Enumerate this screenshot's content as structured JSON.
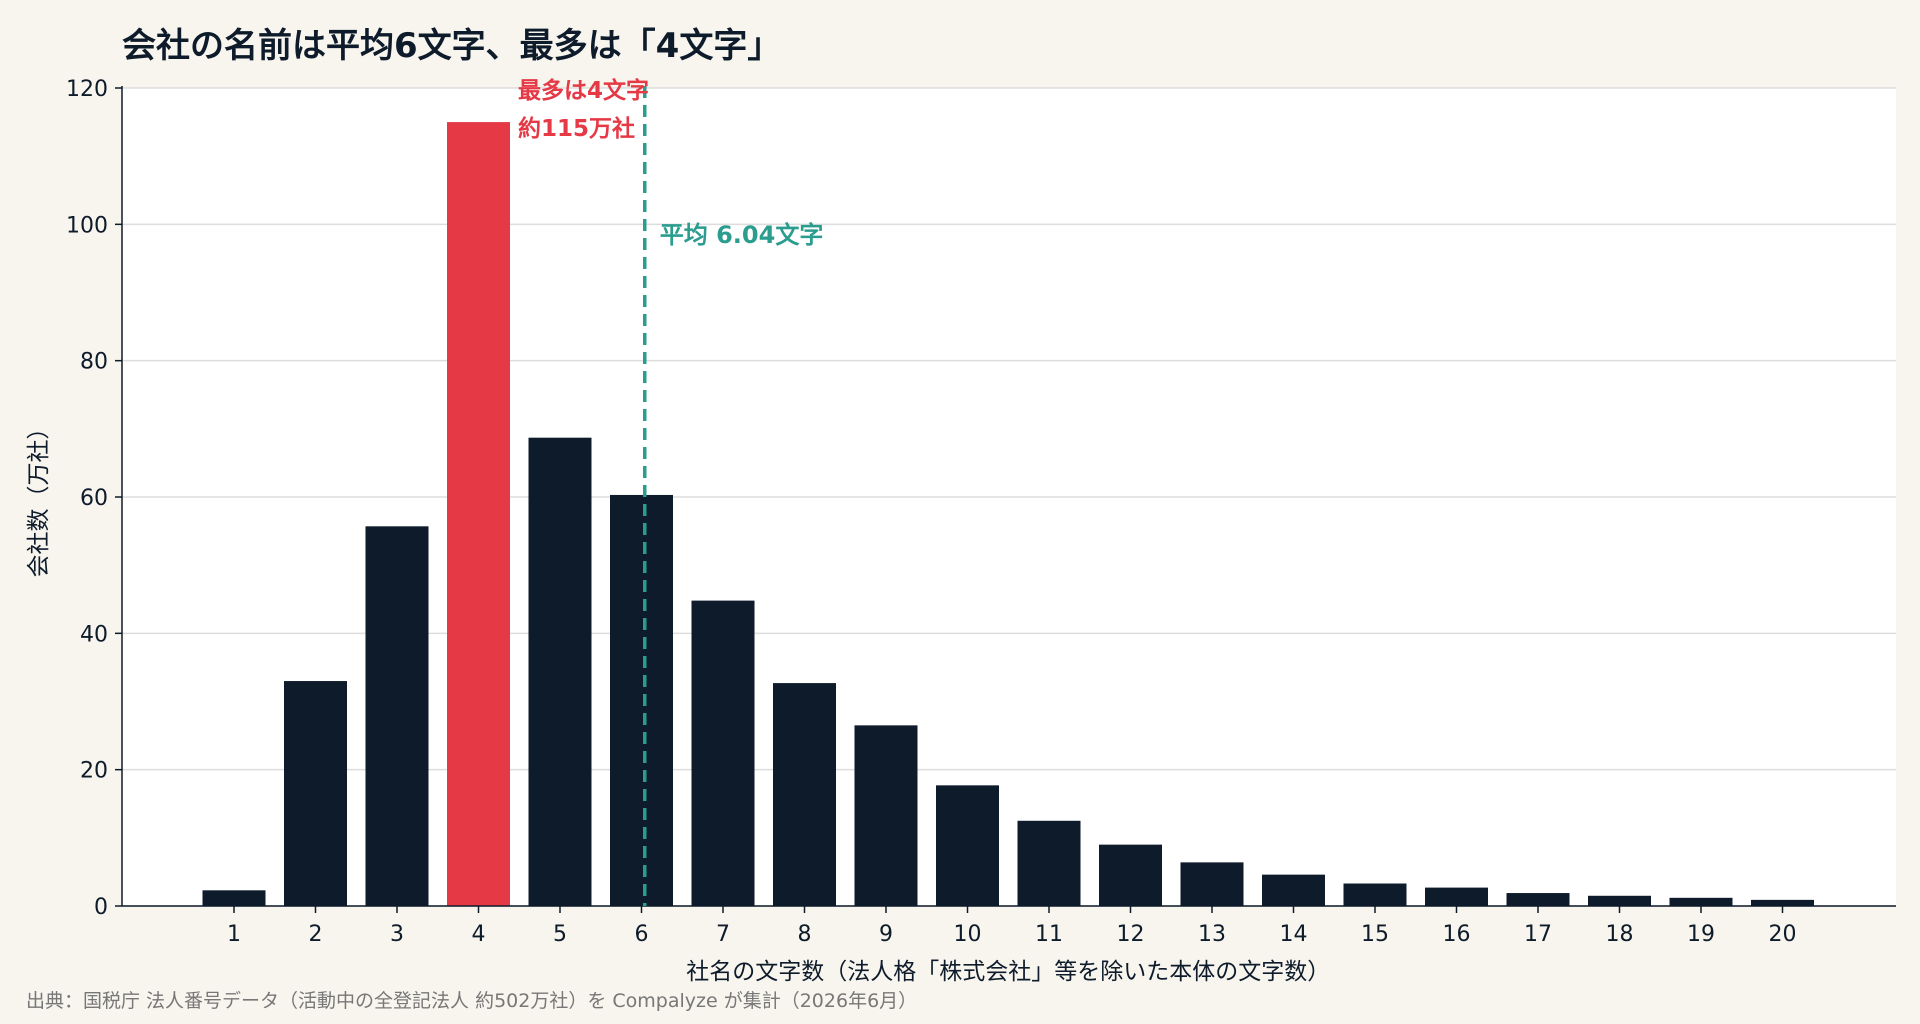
{
  "title": "会社の名前は平均6文字、最多は「4文字」",
  "source": "出典：国税庁 法人番号データ（活動中の全登記法人 約502万社）を Compalyze が集計（2026年6月）",
  "colors": {
    "background": "#f8f5ee",
    "plot_background": "#ffffff",
    "bar": "#0d1b2a",
    "highlight": "#e63946",
    "mean_line": "#2a9d8f",
    "grid": "#dddddd"
  },
  "chart_data": {
    "type": "bar",
    "categories": [
      "1",
      "2",
      "3",
      "4",
      "5",
      "6",
      "7",
      "8",
      "9",
      "10",
      "11",
      "12",
      "13",
      "14",
      "15",
      "16",
      "17",
      "18",
      "19",
      "20"
    ],
    "values": [
      2.3,
      33,
      55.7,
      115,
      68.7,
      60.3,
      44.8,
      32.7,
      26.5,
      17.7,
      12.5,
      9.0,
      6.4,
      4.6,
      3.3,
      2.7,
      1.9,
      1.5,
      1.2,
      0.9
    ],
    "highlight_index": 3,
    "xlabel": "社名の文字数（法人格「株式会社」等を除いた本体の文字数）",
    "ylabel": "会社数（万社）",
    "ylim": [
      0,
      120
    ],
    "yticks": [
      0,
      20,
      40,
      60,
      80,
      100,
      120
    ],
    "grid": "horizontal",
    "mean_value": 6.04,
    "mean_label": "平均 6.04文字",
    "peak_label_line1": "最多は4文字",
    "peak_label_line2": "約115万社"
  }
}
